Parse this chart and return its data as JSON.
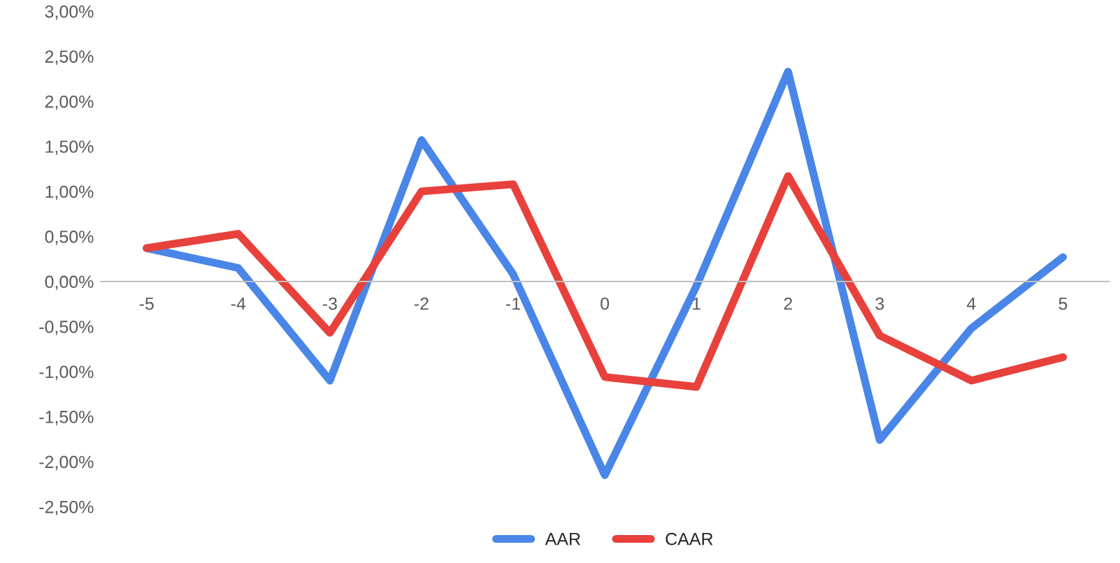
{
  "chart_data": {
    "type": "line",
    "categories": [
      "-5",
      "-4",
      "-3",
      "-2",
      "-1",
      "0",
      "1",
      "2",
      "3",
      "4",
      "5"
    ],
    "series": [
      {
        "name": "AAR",
        "color": "#4a86e8",
        "values": [
          0.37,
          0.15,
          -1.1,
          1.57,
          0.08,
          -2.15,
          -0.05,
          2.33,
          -1.76,
          -0.52,
          0.27
        ]
      },
      {
        "name": "CAAR",
        "color": "#e8413c",
        "values": [
          0.37,
          0.53,
          -0.57,
          1.0,
          1.08,
          -1.06,
          -1.17,
          1.17,
          -0.6,
          -1.1,
          -0.84
        ]
      }
    ],
    "ylim": [
      -2.5,
      3.0
    ],
    "yticks": [
      {
        "value": -2.5,
        "label": "-2,50%"
      },
      {
        "value": -2.0,
        "label": "-2,00%"
      },
      {
        "value": -1.5,
        "label": "-1,50%"
      },
      {
        "value": -1.0,
        "label": "-1,00%"
      },
      {
        "value": -0.5,
        "label": "-0,50%"
      },
      {
        "value": 0.0,
        "label": "0,00%"
      },
      {
        "value": 0.5,
        "label": "0,50%"
      },
      {
        "value": 1.0,
        "label": "1,00%"
      },
      {
        "value": 1.5,
        "label": "1,50%"
      },
      {
        "value": 2.0,
        "label": "2,00%"
      },
      {
        "value": 2.5,
        "label": "2,50%"
      },
      {
        "value": 3.0,
        "label": "3,00%"
      }
    ],
    "grid": false,
    "legend": "bottom",
    "marker": "none",
    "line_style": "solid"
  }
}
